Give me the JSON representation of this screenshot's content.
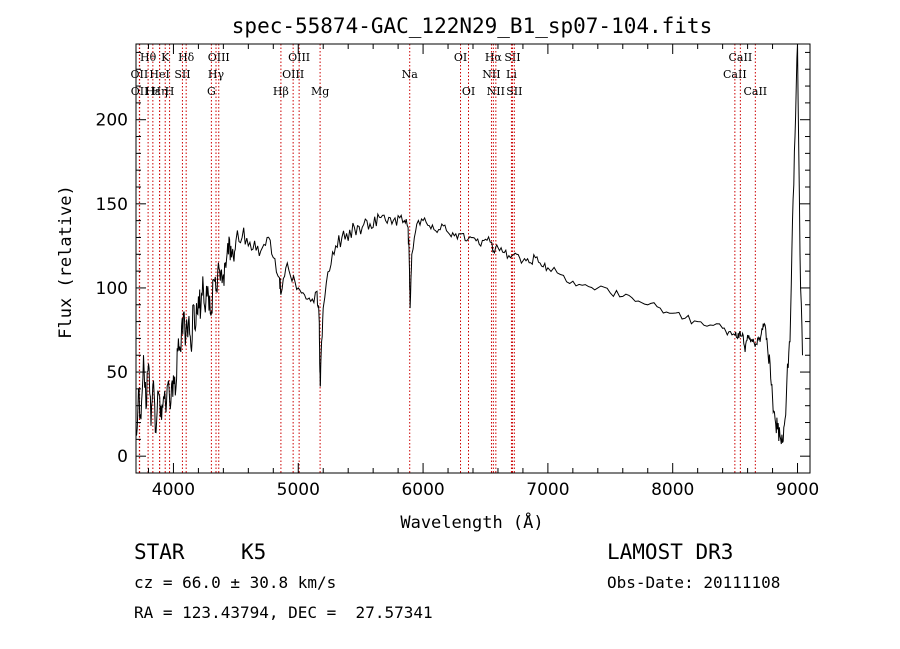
{
  "chart_data": {
    "type": "line",
    "title": "spec-55874-GAC_122N29_B1_sp07-104.fits",
    "xlabel": "Wavelength (Å)",
    "ylabel": "Flux (relative)",
    "xlim": [
      3700,
      9100
    ],
    "ylim": [
      -10,
      245
    ],
    "xticks": [
      4000,
      5000,
      6000,
      7000,
      8000,
      9000
    ],
    "yticks": [
      0,
      50,
      100,
      150,
      200
    ],
    "grid": false,
    "line_color": "#000000",
    "marker_color": "#cc0000",
    "spectrum": {
      "x": [
        3700,
        3720,
        3740,
        3760,
        3780,
        3800,
        3820,
        3840,
        3860,
        3880,
        3900,
        3920,
        3940,
        3960,
        3980,
        4000,
        4020,
        4040,
        4060,
        4080,
        4100,
        4120,
        4140,
        4160,
        4180,
        4200,
        4220,
        4240,
        4260,
        4280,
        4300,
        4320,
        4340,
        4360,
        4380,
        4400,
        4420,
        4440,
        4460,
        4480,
        4500,
        4550,
        4600,
        4650,
        4700,
        4750,
        4800,
        4850,
        4861,
        4900,
        4950,
        5000,
        5050,
        5100,
        5150,
        5167,
        5172,
        5177,
        5183,
        5200,
        5250,
        5300,
        5350,
        5400,
        5450,
        5500,
        5550,
        5600,
        5650,
        5700,
        5750,
        5800,
        5850,
        5880,
        5890,
        5896,
        5910,
        5950,
        6000,
        6050,
        6100,
        6150,
        6200,
        6250,
        6300,
        6350,
        6400,
        6450,
        6500,
        6550,
        6563,
        6600,
        6650,
        6700,
        6750,
        6800,
        6850,
        6900,
        6950,
        7000,
        7100,
        7200,
        7300,
        7400,
        7500,
        7600,
        7700,
        7800,
        7900,
        8000,
        8100,
        8200,
        8300,
        8400,
        8450,
        8500,
        8520,
        8540,
        8560,
        8580,
        8600,
        8620,
        8640,
        8660,
        8680,
        8700,
        8720,
        8740,
        8760,
        8780,
        8800,
        8820,
        8840,
        8860,
        8880,
        8900,
        8920,
        8940,
        8960,
        8980,
        9000,
        9020,
        9040
      ],
      "y": [
        12,
        40,
        22,
        60,
        28,
        55,
        18,
        45,
        14,
        38,
        30,
        35,
        26,
        45,
        32,
        48,
        40,
        70,
        62,
        85,
        72,
        80,
        65,
        90,
        78,
        95,
        88,
        100,
        92,
        96,
        84,
        105,
        98,
        115,
        110,
        108,
        112,
        120,
        125,
        118,
        128,
        130,
        125,
        128,
        122,
        130,
        118,
        106,
        96,
        112,
        104,
        100,
        96,
        92,
        98,
        82,
        55,
        42,
        60,
        88,
        110,
        125,
        130,
        128,
        136,
        132,
        140,
        136,
        142,
        140,
        138,
        143,
        140,
        136,
        115,
        88,
        120,
        138,
        140,
        137,
        134,
        138,
        133,
        131,
        132,
        128,
        130,
        126,
        129,
        127,
        122,
        124,
        121,
        118,
        120,
        116,
        115,
        118,
        113,
        112,
        108,
        104,
        102,
        100,
        97,
        95,
        92,
        90,
        88,
        85,
        82,
        80,
        78,
        76,
        74,
        72,
        70,
        74,
        73,
        62,
        72,
        70,
        68,
        65,
        70,
        68,
        75,
        78,
        64,
        55,
        34,
        22,
        16,
        12,
        8,
        22,
        55,
        68,
        140,
        190,
        245,
        120,
        60
      ]
    },
    "spectral_lines": [
      {
        "label": "Hθ",
        "wavelength": 3797,
        "row": 0
      },
      {
        "label": "OII",
        "wavelength": 3727,
        "row": 1
      },
      {
        "label": "OII",
        "wavelength": 3729,
        "row": 2
      },
      {
        "label": "Hε",
        "wavelength": 3835,
        "row": 2
      },
      {
        "label": "HeI",
        "wavelength": 3889,
        "row": 1
      },
      {
        "label": "K",
        "wavelength": 3934,
        "row": 0
      },
      {
        "label": "Hη",
        "wavelength": 3889,
        "row": 2
      },
      {
        "label": "SII",
        "wavelength": 4072,
        "row": 1
      },
      {
        "label": "H",
        "wavelength": 3969,
        "row": 2
      },
      {
        "label": "Hδ",
        "wavelength": 4102,
        "row": 0
      },
      {
        "label": "OIII",
        "wavelength": 4363,
        "row": 0
      },
      {
        "label": "Hγ",
        "wavelength": 4341,
        "row": 1
      },
      {
        "label": "G",
        "wavelength": 4304,
        "row": 2
      },
      {
        "label": "Hβ",
        "wavelength": 4861,
        "row": 2
      },
      {
        "label": "OIII",
        "wavelength": 5007,
        "row": 0
      },
      {
        "label": "OIII",
        "wavelength": 4959,
        "row": 1
      },
      {
        "label": "Mg",
        "wavelength": 5175,
        "row": 2
      },
      {
        "label": "Na",
        "wavelength": 5893,
        "row": 1
      },
      {
        "label": "OI",
        "wavelength": 6300,
        "row": 0
      },
      {
        "label": "OI",
        "wavelength": 6364,
        "row": 2
      },
      {
        "label": "Hα",
        "wavelength": 6563,
        "row": 0
      },
      {
        "label": "SII",
        "wavelength": 6716,
        "row": 0
      },
      {
        "label": "NII",
        "wavelength": 6548,
        "row": 1
      },
      {
        "label": "Li",
        "wavelength": 6708,
        "row": 1
      },
      {
        "label": "NII",
        "wavelength": 6583,
        "row": 2
      },
      {
        "label": "SII",
        "wavelength": 6731,
        "row": 2
      },
      {
        "label": "CaII",
        "wavelength": 8542,
        "row": 0
      },
      {
        "label": "CaII",
        "wavelength": 8498,
        "row": 1
      },
      {
        "label": "CaII",
        "wavelength": 8662,
        "row": 2
      }
    ]
  },
  "info": {
    "class_label": "STAR",
    "subclass_label": "K5",
    "survey_label": "LAMOST DR3",
    "velocity_text": "cz = 66.0 ± 30.8 km/s",
    "obs_date_text": "Obs-Date: 20111108",
    "coords_text": "RA = 123.43794, DEC =  27.57341"
  }
}
